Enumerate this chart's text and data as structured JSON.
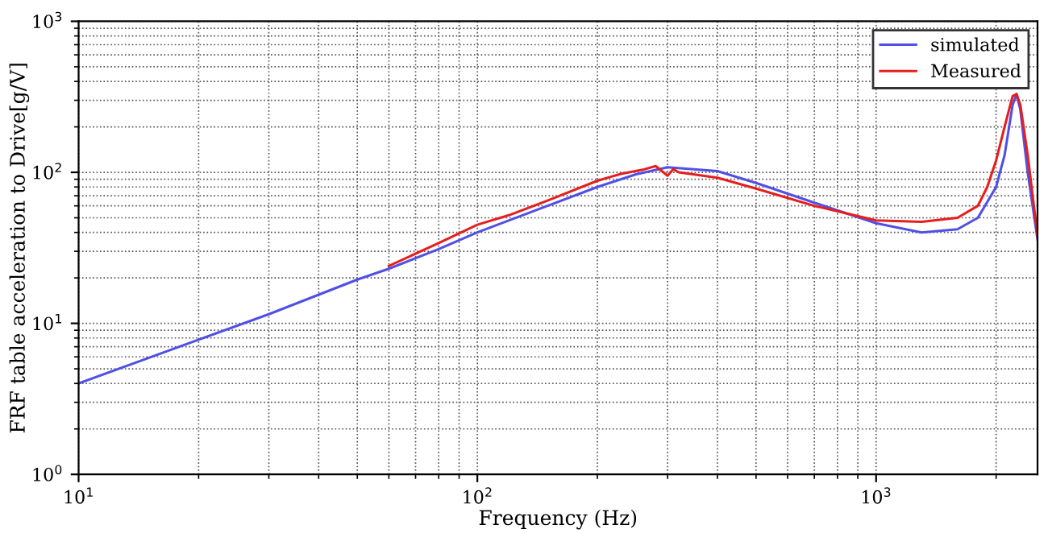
{
  "chart_data": {
    "type": "line",
    "xlabel": "Frequency (Hz)",
    "ylabel": "FRF table acceleration to Drive[g/V]",
    "log": "xy",
    "grid": true,
    "legend": "top right",
    "marker": "none",
    "line_style": "solid",
    "xlim": [
      10,
      2540
    ],
    "ylim": [
      1,
      1000
    ],
    "xticks": [
      {
        "value": 10,
        "label": "10$^{1}$"
      },
      {
        "value": 100,
        "label": "10$^{2}$"
      },
      {
        "value": 1000,
        "label": "10$^{3}$"
      }
    ],
    "yticks": [
      {
        "value": 1,
        "label": "10$^{0}$"
      },
      {
        "value": 10,
        "label": "10$^{1}$"
      },
      {
        "value": 100,
        "label": "10$^{2}$"
      },
      {
        "value": 1000,
        "label": "10$^{3}$"
      }
    ],
    "series": [
      {
        "name": "simulated",
        "color": "#5050e6",
        "x": [
          10,
          20,
          30,
          50,
          60,
          80,
          100,
          150,
          200,
          250,
          300,
          400,
          500,
          700,
          1000,
          1300,
          1600,
          1800,
          2000,
          2100,
          2200,
          2250,
          2300,
          2400,
          2540
        ],
        "values": [
          4,
          7.8,
          11.5,
          19.5,
          23,
          31,
          40,
          60,
          80,
          97,
          108,
          102,
          85,
          63,
          46,
          40,
          42,
          50,
          80,
          130,
          280,
          330,
          260,
          100,
          36
        ]
      },
      {
        "name": "Measured",
        "color": "#e61e1e",
        "x": [
          60,
          80,
          100,
          120,
          150,
          200,
          230,
          260,
          280,
          300,
          310,
          320,
          400,
          500,
          700,
          1000,
          1300,
          1600,
          1800,
          1900,
          2000,
          2100,
          2200,
          2250,
          2300,
          2400,
          2540
        ],
        "values": [
          24,
          34,
          45,
          52,
          65,
          88,
          98,
          104,
          110,
          95,
          105,
          100,
          92,
          78,
          60,
          48,
          47,
          50,
          60,
          80,
          120,
          200,
          320,
          330,
          280,
          130,
          38
        ]
      }
    ]
  }
}
